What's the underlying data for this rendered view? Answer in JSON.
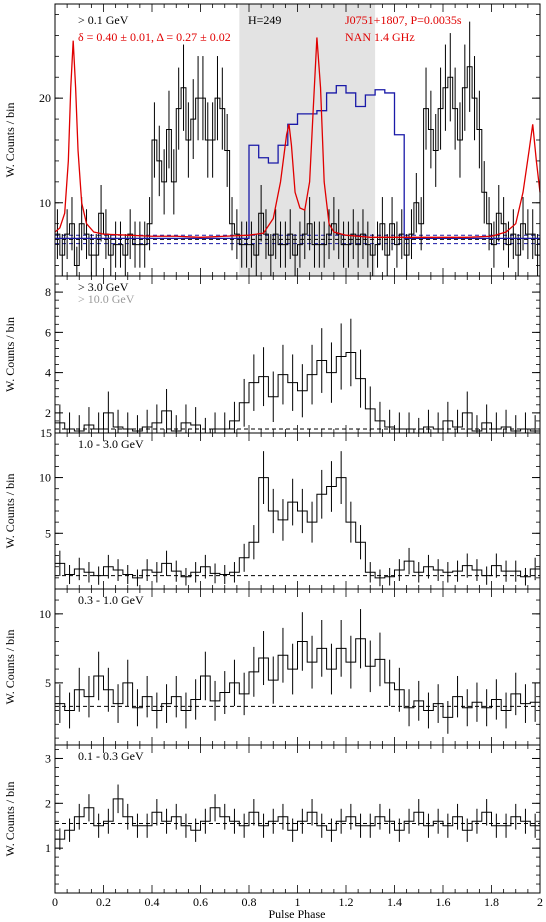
{
  "chart_data": [
    {
      "type": "line",
      "panel": "p1",
      "xlim": [
        0,
        2
      ],
      "ylim": [
        3,
        29
      ],
      "yticks": [
        10,
        20
      ],
      "ylabel": "W. Counts / bin",
      "energy_label": "> 0.1 GeV",
      "fit_label": "δ = 0.40 ± 0.01, Δ = 0.27 ± 0.02",
      "h_label": "H=249",
      "pulsar_label": "J0751+1807, P=0.0035s",
      "radio_label": "NAN 1.4 GHz",
      "shade": [
        0.76,
        1.32
      ],
      "background_level": 6.5,
      "background_band": [
        6.1,
        6.9
      ],
      "gamma_profile": [
        7,
        5,
        7,
        8,
        4,
        8,
        7,
        5,
        5,
        9,
        7,
        5,
        6,
        6,
        5,
        7,
        6,
        6,
        6,
        8,
        16,
        14,
        12,
        17,
        12,
        19,
        21,
        16,
        18,
        20,
        20,
        16,
        16,
        20,
        19,
        15,
        8,
        7,
        6,
        6,
        6,
        5,
        9,
        7,
        5,
        7,
        6,
        6,
        7,
        5,
        6,
        7,
        8,
        6,
        6,
        6,
        7,
        8,
        7,
        6,
        6,
        7,
        6,
        7,
        6,
        5,
        6,
        8,
        5,
        8,
        6,
        7,
        5,
        7,
        10,
        8,
        19,
        17,
        15,
        19,
        21,
        22,
        19,
        16,
        21,
        23,
        20,
        17,
        11,
        8,
        6,
        9,
        8,
        6,
        7,
        5,
        8,
        7,
        7,
        5
      ],
      "gamma_model": [
        6.6,
        6.6,
        6.6,
        6.6,
        6.6,
        6.6,
        6.6,
        6.6,
        6.6,
        6.6,
        6.6,
        6.6,
        6.6,
        6.6,
        6.6,
        6.6,
        6.6,
        6.6,
        6.6,
        6.6,
        15.5,
        14.3,
        13.8,
        15.5,
        17.5,
        18.5,
        18.5,
        18.8,
        20.5,
        21.2,
        20.5,
        19.2,
        20.3,
        20.8,
        20.5,
        16.5,
        6.6,
        6.6,
        6.6,
        6.6,
        6.6,
        6.6,
        6.6,
        6.6,
        6.6,
        6.6,
        6.6,
        6.6,
        6.6,
        6.6
      ],
      "radio_profile": [
        [
          0.0,
          7.2
        ],
        [
          0.02,
          7.6
        ],
        [
          0.04,
          9.0
        ],
        [
          0.055,
          14.0
        ],
        [
          0.065,
          21.0
        ],
        [
          0.075,
          25.5
        ],
        [
          0.085,
          21.0
        ],
        [
          0.095,
          15.0
        ],
        [
          0.11,
          10.0
        ],
        [
          0.13,
          8.0
        ],
        [
          0.16,
          7.2
        ],
        [
          0.2,
          7.0
        ],
        [
          0.3,
          6.9
        ],
        [
          0.4,
          6.8
        ],
        [
          0.5,
          6.8
        ],
        [
          0.6,
          6.7
        ],
        [
          0.7,
          6.8
        ],
        [
          0.8,
          6.9
        ],
        [
          0.86,
          7.1
        ],
        [
          0.9,
          8.5
        ],
        [
          0.93,
          12.0
        ],
        [
          0.955,
          16.5
        ],
        [
          0.965,
          17.5
        ],
        [
          0.975,
          15.5
        ],
        [
          0.99,
          11.0
        ],
        [
          1.01,
          9.5
        ],
        [
          1.03,
          9.3
        ],
        [
          1.05,
          12.0
        ],
        [
          1.065,
          19.0
        ],
        [
          1.08,
          25.8
        ],
        [
          1.095,
          21.0
        ],
        [
          1.11,
          12.0
        ],
        [
          1.13,
          8.0
        ],
        [
          1.15,
          7.2
        ],
        [
          1.2,
          6.9
        ],
        [
          1.3,
          6.7
        ],
        [
          1.4,
          6.7
        ],
        [
          1.5,
          6.7
        ],
        [
          1.6,
          6.7
        ],
        [
          1.7,
          6.7
        ],
        [
          1.8,
          6.8
        ],
        [
          1.86,
          7.2
        ],
        [
          1.9,
          8.0
        ],
        [
          1.93,
          11.0
        ],
        [
          1.955,
          15.0
        ],
        [
          1.97,
          17.5
        ],
        [
          1.985,
          14.0
        ],
        [
          2.0,
          11.0
        ]
      ]
    },
    {
      "type": "line",
      "panel": "p2",
      "xlim": [
        0,
        2
      ],
      "ylim": [
        1,
        8.8
      ],
      "yticks": [
        2,
        4,
        6,
        8
      ],
      "extra_tick": "15",
      "ylabel": "W. Counts / bin",
      "energy_label": "> 3.0 GeV",
      "energy_label2": "> 10.0 GeV",
      "background_level": 1.2,
      "profile": [
        1.5,
        1.2,
        1.1,
        1.4,
        1.2,
        2.0,
        1.3,
        1.2,
        1.1,
        1.3,
        1.5,
        2.1,
        1.1,
        1.5,
        1.4,
        1.0,
        1.2,
        1.2,
        1.6,
        2.5,
        3.5,
        3.8,
        2.8,
        3.9,
        3.5,
        3.1,
        3.9,
        4.6,
        4.0,
        4.8,
        5.0,
        3.7,
        2.2,
        1.6,
        1.3,
        1.2,
        1.2,
        1.0,
        1.3,
        1.2,
        1.6,
        1.3,
        2.0,
        1.1,
        1.5,
        1.2,
        1.3,
        1.1,
        1.2,
        1.1
      ]
    },
    {
      "type": "line",
      "panel": "p3",
      "xlim": [
        0,
        2
      ],
      "ylim": [
        0,
        14
      ],
      "yticks": [
        5,
        10
      ],
      "ylabel": "W. Counts / bin",
      "energy_label": "1.0 - 3.0 GeV",
      "background_level": 1.2,
      "profile": [
        2.3,
        1.3,
        1.8,
        1.5,
        1.2,
        2.0,
        1.7,
        1.3,
        1.0,
        1.7,
        1.5,
        2.3,
        1.6,
        1.1,
        1.5,
        2.0,
        1.4,
        1.3,
        1.5,
        2.8,
        4.2,
        10.0,
        7.0,
        6.2,
        7.8,
        7.0,
        6.0,
        8.5,
        9.2,
        10.0,
        6.0,
        4.2,
        1.5,
        1.0,
        1.1,
        1.7,
        2.5,
        1.5,
        2.0,
        1.7,
        1.5,
        1.6,
        2.1,
        1.7,
        1.2,
        2.1,
        1.6,
        1.6,
        1.1,
        1.8
      ]
    },
    {
      "type": "line",
      "panel": "p4",
      "xlim": [
        0,
        2
      ],
      "ylim": [
        0.5,
        11.8
      ],
      "yticks": [
        5,
        10
      ],
      "ylabel": "W. Counts / bin",
      "energy_label": "0.3 - 1.0 GeV",
      "background_level": 3.3,
      "profile": [
        3.5,
        3.0,
        4.5,
        4.0,
        5.5,
        4.5,
        3.5,
        5.0,
        3.2,
        4.0,
        3.0,
        3.5,
        4.0,
        3.0,
        3.8,
        5.5,
        3.7,
        4.3,
        5.0,
        4.2,
        5.8,
        6.8,
        5.2,
        7.0,
        6.0,
        8.0,
        6.5,
        7.5,
        6.0,
        7.5,
        6.5,
        8.2,
        6.2,
        6.7,
        5.0,
        4.5,
        3.2,
        3.7,
        3.0,
        3.5,
        2.5,
        4.0,
        3.2,
        3.6,
        3.2,
        3.8,
        3.0,
        4.2,
        3.5,
        3.6
      ]
    },
    {
      "type": "line",
      "panel": "p5",
      "xlim": [
        0,
        2
      ],
      "ylim": [
        0,
        3.3
      ],
      "yticks": [
        1,
        2,
        3
      ],
      "ylabel": "W. Counts / bin",
      "energy_label": "0.1 - 0.3 GeV",
      "background_level": 1.55,
      "profile": [
        1.2,
        1.4,
        1.7,
        1.9,
        1.5,
        1.6,
        2.1,
        1.7,
        1.5,
        1.5,
        1.8,
        1.6,
        1.7,
        1.5,
        1.4,
        1.6,
        1.9,
        1.7,
        1.6,
        1.5,
        1.8,
        1.5,
        1.6,
        1.7,
        1.4,
        1.6,
        1.8,
        1.5,
        1.4,
        1.6,
        1.7,
        1.5,
        1.5,
        1.7,
        1.6,
        1.4,
        1.6,
        1.8,
        1.5,
        1.6,
        1.5,
        1.7,
        1.4,
        1.6,
        1.8,
        1.5,
        1.5,
        1.7,
        1.6,
        1.5
      ]
    }
  ],
  "x_axis": {
    "label": "Pulse Phase",
    "ticks": [
      "0",
      "0.2",
      "0.4",
      "0.6",
      "0.8",
      "1",
      "1.2",
      "1.4",
      "1.6",
      "1.8",
      "2"
    ]
  },
  "colors": {
    "histogram": "#000000",
    "gamma_model": "#1a1aa8",
    "radio": "#e00000",
    "shade": "#e3e3e3",
    "background_line": "#000000",
    "background_alt": "#1a1aa8",
    "subtitle_gray": "#9a9a9a"
  }
}
